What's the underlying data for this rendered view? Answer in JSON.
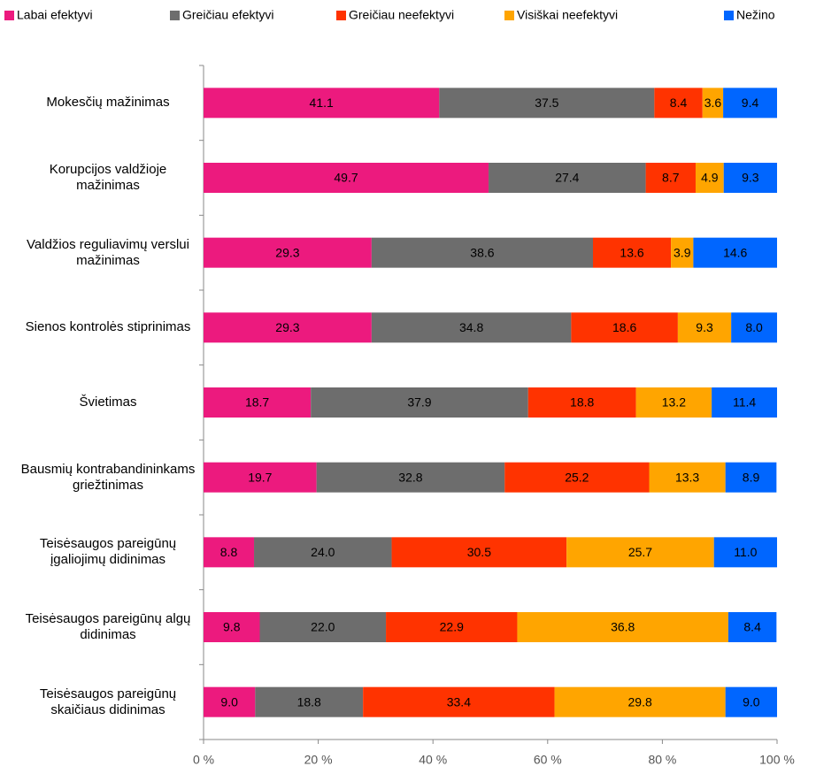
{
  "chart_data": {
    "type": "stacked-bar-horizontal",
    "categories": [
      "Mokesčių mažinimas",
      "Korupcijos valdžioje mažinimas",
      "Valdžios reguliavimų verslui mažinimas",
      "Sienos kontrolės stiprinimas",
      "Švietimas",
      "Bausmių kontrabandininkams griežtinimas",
      "Teisėsaugos pareigūnų įgaliojimų didinimas",
      "Teisėsaugos pareigūnų algų didinimas",
      "Teisėsaugos pareigūnų skaičiaus didinimas"
    ],
    "series": [
      {
        "name": "Labai efektyvi",
        "color": "#ec1a7e",
        "values": [
          41.1,
          49.7,
          29.3,
          29.3,
          18.7,
          19.7,
          8.8,
          9.8,
          9.0
        ],
        "value_labels": [
          "41.1",
          "49.7",
          "29.3",
          "29.3",
          "18.7",
          "19.7",
          "8.8",
          "9.8",
          "9.0"
        ]
      },
      {
        "name": "Greičiau efektyvi",
        "color": "#6d6d6d",
        "values": [
          37.5,
          27.4,
          38.6,
          34.8,
          37.9,
          32.8,
          24.0,
          22.0,
          18.8
        ],
        "value_labels": [
          "37.5",
          "27.4",
          "38.6",
          "34.8",
          "37.9",
          "32.8",
          "24.0",
          "22.0",
          "18.8"
        ]
      },
      {
        "name": "Greičiau neefektyvi",
        "color": "#ff3300",
        "values": [
          8.4,
          8.7,
          13.6,
          18.6,
          18.8,
          25.2,
          30.5,
          22.9,
          33.4
        ],
        "value_labels": [
          "8.4",
          "8.7",
          "13.6",
          "18.6",
          "18.8",
          "25.2",
          "30.5",
          "22.9",
          "33.4"
        ]
      },
      {
        "name": "Visiškai neefektyvi",
        "color": "#ffa500",
        "values": [
          3.6,
          4.9,
          3.9,
          9.3,
          13.2,
          13.3,
          25.7,
          36.8,
          29.8
        ],
        "value_labels": [
          "3.6",
          "4.9",
          "3.9",
          "9.3",
          "13.2",
          "13.3",
          "25.7",
          "36.8",
          "29.8"
        ]
      },
      {
        "name": "Nežino",
        "color": "#0066ff",
        "values": [
          9.4,
          9.3,
          14.6,
          8.0,
          11.4,
          8.9,
          11.0,
          8.4,
          9.0
        ],
        "value_labels": [
          "9.4",
          "9.3",
          "14.6",
          "8.0",
          "11.4",
          "8.9",
          "11.0",
          "8.4",
          "9.0"
        ]
      }
    ],
    "xlim": [
      0,
      100
    ],
    "xticks": [
      {
        "value": 0,
        "label": "0 %"
      },
      {
        "value": 20,
        "label": "20 %"
      },
      {
        "value": 40,
        "label": "40 %"
      },
      {
        "value": 60,
        "label": "60 %"
      },
      {
        "value": 80,
        "label": "80 %"
      },
      {
        "value": 100,
        "label": "100 %"
      }
    ],
    "legend": "top"
  }
}
